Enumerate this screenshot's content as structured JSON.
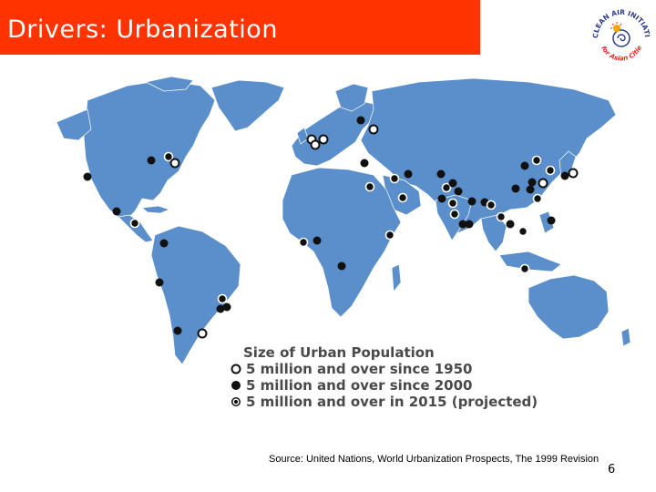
{
  "slide": {
    "title": "Drivers: Urbanization",
    "source": "Source: United Nations, World Urbanization Prospects, The 1999 Revision",
    "page_number": "6"
  },
  "logo": {
    "ring_text": "CLEAN AIR INITIATIVE",
    "bottom_text": "for Asian Cities"
  },
  "legend": {
    "title": "Size of Urban Population",
    "items": [
      {
        "type": "open",
        "label": "5 million and over since 1950"
      },
      {
        "type": "filled",
        "label": "5 million and over since 2000"
      },
      {
        "type": "dotted",
        "label": "5 million and over in 2015 (projected)"
      }
    ]
  },
  "colors": {
    "title_bar": "#ff3300",
    "land": "#5b8fcc",
    "borders": "#ffffff",
    "dot_fill": "#111111"
  }
}
